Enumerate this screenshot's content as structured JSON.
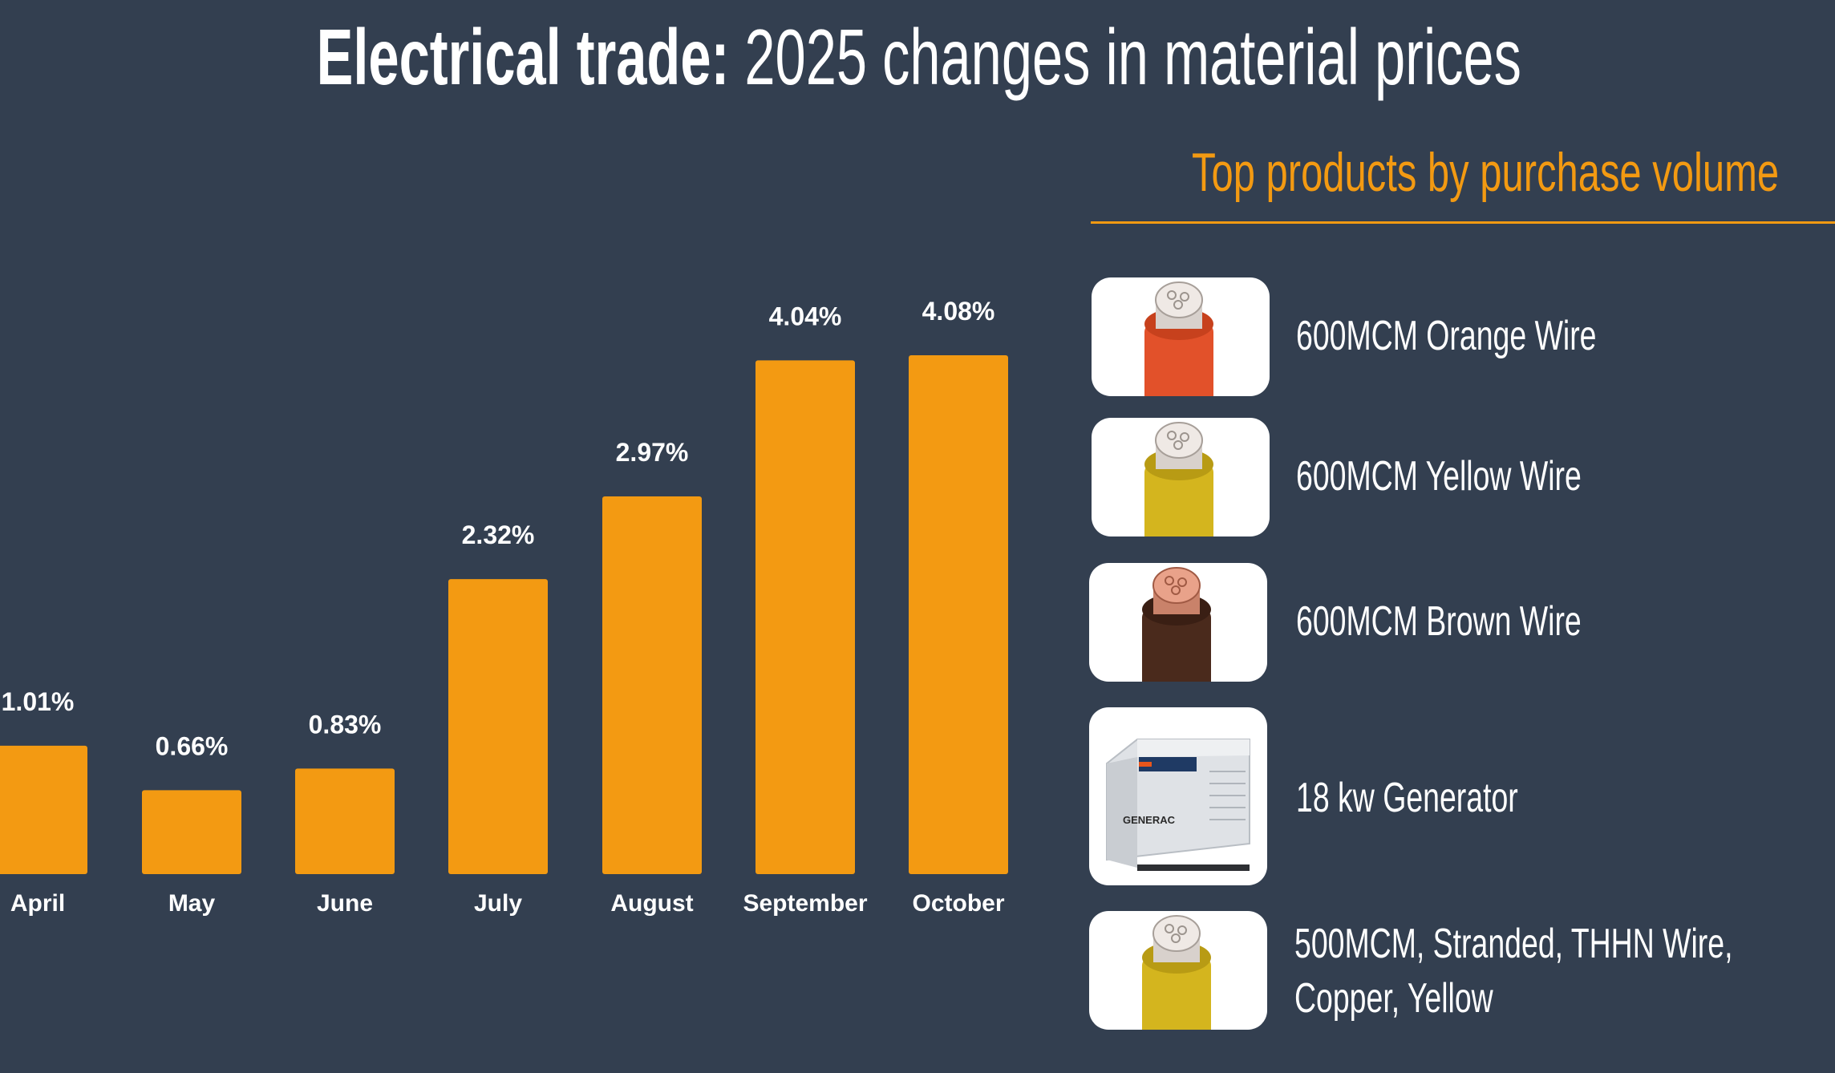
{
  "title": {
    "bold": "Electrical trade:",
    "rest": "2025 changes in material prices"
  },
  "colors": {
    "background": "#333f50",
    "bar": "#f39a12",
    "accent": "#f39a12",
    "text": "#ffffff"
  },
  "chart_data": {
    "type": "bar",
    "title": "Electrical trade: 2025 changes in material prices",
    "categories": [
      "April",
      "May",
      "June",
      "July",
      "August",
      "September",
      "October"
    ],
    "values": [
      1.01,
      0.66,
      0.83,
      2.32,
      2.97,
      4.04,
      4.08
    ],
    "labels": [
      "1.01%",
      "0.66%",
      "0.83%",
      "2.32%",
      "2.97%",
      "4.04%",
      "4.08%"
    ],
    "unit": "%",
    "xlabel": "",
    "ylabel": "",
    "ylim": [
      0,
      4.08
    ],
    "grid": false,
    "legend": "none"
  },
  "products": {
    "heading": "Top products by purchase volume",
    "items": [
      {
        "name": "600MCM Orange Wire",
        "icon": "orange-wire-icon",
        "jacket": "#e2512a"
      },
      {
        "name": "600MCM Yellow Wire",
        "icon": "yellow-wire-icon",
        "jacket": "#d4b51e"
      },
      {
        "name": "600MCM Brown Wire",
        "icon": "brown-wire-icon",
        "jacket": "#4a2a1c"
      },
      {
        "name": "18 kw Generator",
        "icon": "generator-icon",
        "brand": "GENERAC"
      },
      {
        "name_line1": "500MCM, Stranded, THHN Wire,",
        "name_line2": "Copper, Yellow",
        "icon": "yellow-wire-icon",
        "jacket": "#d4b51e"
      }
    ]
  }
}
